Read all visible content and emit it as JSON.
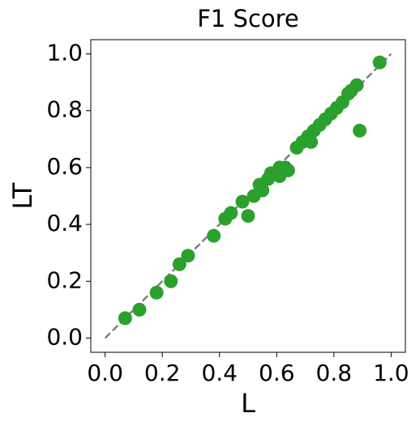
{
  "chart_data": {
    "type": "scatter",
    "title": "F1 Score",
    "x_label": "L",
    "y_label": "LT",
    "xlim": [
      -0.05,
      1.05
    ],
    "ylim": [
      -0.05,
      1.05
    ],
    "xticks": [
      {
        "value": 0,
        "label": "0.0"
      },
      0.2,
      0.4,
      0.6,
      0.8,
      {
        "value": 1,
        "label": "1.0"
      }
    ],
    "yticks": [
      {
        "value": 0,
        "label": "0.0"
      },
      0.2,
      0.4,
      0.6,
      0.8,
      {
        "value": 1,
        "label": "1.0"
      }
    ],
    "identity_line": {
      "color": "#808080",
      "x": [
        0,
        1
      ],
      "y": [
        0,
        1
      ]
    },
    "series": [
      {
        "color": "#2ca02c",
        "x": [
          0.07,
          0.12,
          0.18,
          0.23,
          0.26,
          0.29,
          0.38,
          0.42,
          0.44,
          0.48,
          0.5,
          0.52,
          0.54,
          0.55,
          0.57,
          0.58,
          0.61,
          0.61,
          0.63,
          0.64,
          0.67,
          0.69,
          0.71,
          0.72,
          0.73,
          0.75,
          0.77,
          0.79,
          0.81,
          0.83,
          0.85,
          0.86,
          0.88,
          0.89,
          0.96
        ],
        "values": [
          0.07,
          0.1,
          0.16,
          0.2,
          0.26,
          0.29,
          0.36,
          0.42,
          0.44,
          0.48,
          0.43,
          0.5,
          0.54,
          0.52,
          0.56,
          0.58,
          0.6,
          0.57,
          0.6,
          0.59,
          0.67,
          0.69,
          0.71,
          0.69,
          0.73,
          0.75,
          0.77,
          0.79,
          0.81,
          0.83,
          0.86,
          0.87,
          0.89,
          0.73,
          0.97
        ]
      }
    ]
  }
}
